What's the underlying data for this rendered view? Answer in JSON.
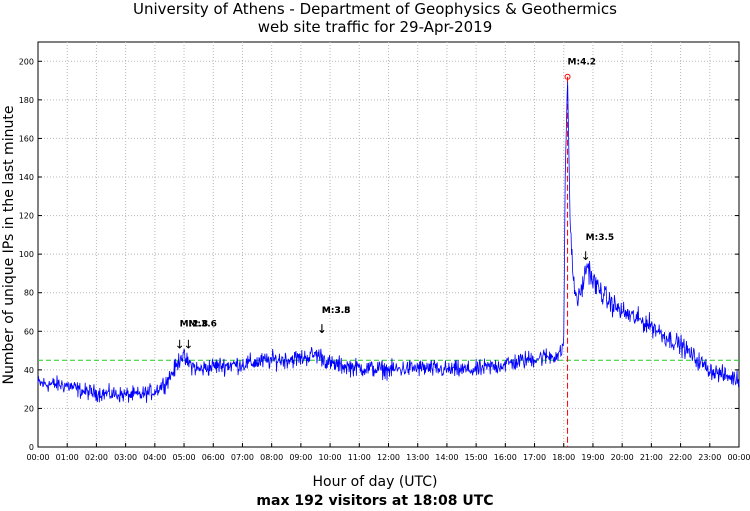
{
  "chart_data": {
    "type": "line",
    "title": "University of Athens - Department of Geophysics & Geothermics",
    "subtitle": "web site traffic for 29-Apr-2019",
    "xlabel": "Hour of day (UTC)",
    "ylabel": "Number of unique IPs in the last minute",
    "footer": "max 192 visitors at 18:08 UTC",
    "xlim_hours": [
      0,
      24
    ],
    "ylim": [
      0,
      210
    ],
    "grid": true,
    "x_ticks": [
      "00:00",
      "01:00",
      "02:00",
      "03:00",
      "04:00",
      "05:00",
      "06:00",
      "07:00",
      "08:00",
      "09:00",
      "10:00",
      "11:00",
      "12:00",
      "13:00",
      "14:00",
      "15:00",
      "16:00",
      "17:00",
      "18:00",
      "19:00",
      "20:00",
      "21:00",
      "22:00",
      "23:00",
      "00:00"
    ],
    "y_ticks": [
      0,
      20,
      40,
      60,
      80,
      100,
      120,
      140,
      160,
      180,
      200
    ],
    "average_line": 45,
    "max_marker": {
      "time": "18:08",
      "hour": 18.13,
      "value": 192
    },
    "traffic_profile": {
      "hours": [
        0,
        1,
        1.5,
        2,
        3,
        3.5,
        4,
        4.4,
        4.75,
        4.9,
        5.1,
        5.5,
        6,
        7,
        8,
        9,
        9.5,
        9.7,
        10,
        11,
        12,
        13,
        14,
        15,
        16,
        17,
        17.5,
        17.9,
        18.0,
        18.05,
        18.13,
        18.22,
        18.35,
        18.5,
        18.7,
        18.8,
        19,
        19.5,
        20,
        21,
        21.5,
        22,
        22.5,
        23,
        23.5,
        24
      ],
      "values": [
        33,
        32,
        29,
        28,
        27,
        27,
        29,
        34,
        42,
        48,
        44,
        40,
        42,
        43,
        45,
        46,
        48,
        47,
        43,
        41,
        40,
        41,
        40,
        40,
        43,
        46,
        47,
        48,
        56,
        140,
        192,
        115,
        82,
        76,
        87,
        95,
        86,
        76,
        70,
        63,
        57,
        53,
        46,
        40,
        37,
        35
      ]
    },
    "noise_amplitude": 4,
    "annotations": [
      {
        "label": "M:4.2",
        "hour": 18.13,
        "value": 192
      },
      {
        "label": "M:3.5",
        "hour": 18.75,
        "value": 96
      },
      {
        "label": "M:3.8",
        "hour": 9.72,
        "value": 58
      },
      {
        "label": "M:3.5",
        "hour": 9.72,
        "value": 58
      },
      {
        "label": "M:2.8",
        "hour": 4.85,
        "value": 50
      },
      {
        "label": "M:3.6",
        "hour": 5.15,
        "value": 50
      }
    ],
    "colors": {
      "series": "#0000ff",
      "average": "#22cc22",
      "max_line": "#ff0000",
      "grid": "#b8b8b8"
    }
  }
}
